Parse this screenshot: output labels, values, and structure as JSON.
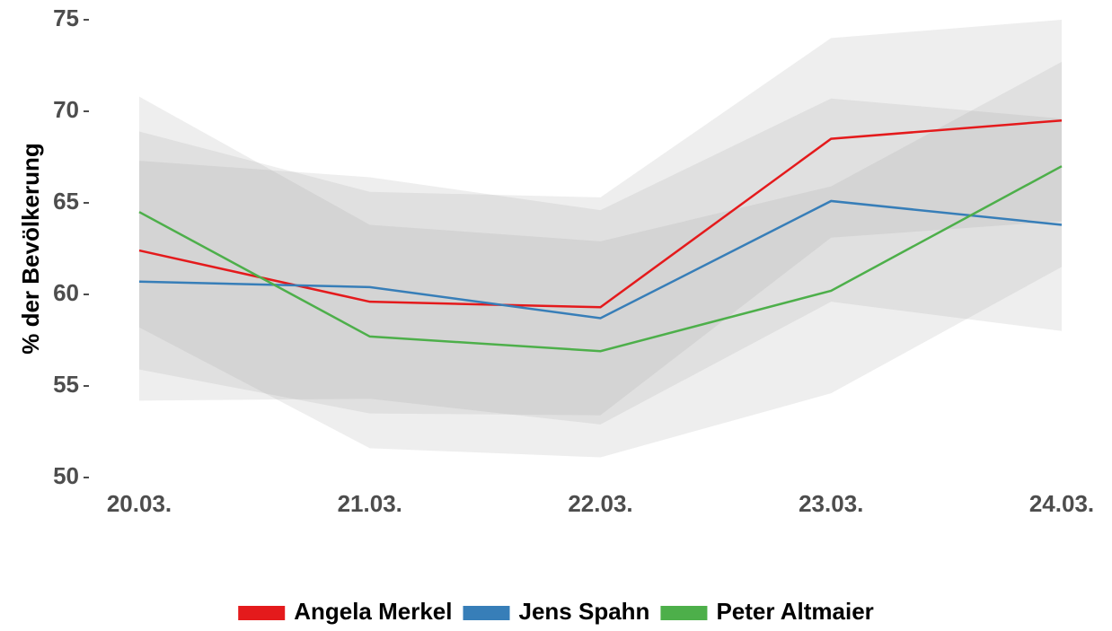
{
  "chart_data": {
    "type": "line",
    "y_label": "% der Bevölkerung",
    "categories": [
      "20.03.",
      "21.03.",
      "22.03.",
      "23.03.",
      "24.03."
    ],
    "ylim": [
      50,
      75
    ],
    "yticks": [
      50,
      55,
      60,
      65,
      70,
      75
    ],
    "legend": "bottom",
    "series": [
      {
        "name": "Angela Merkel",
        "color": "#e41a1c",
        "values": [
          62.4,
          59.6,
          59.3,
          68.5,
          69.5
        ],
        "lower": [
          55.9,
          53.5,
          53.4,
          63.1,
          64.0
        ],
        "upper": [
          68.9,
          65.6,
          65.3,
          74.0,
          75.0
        ]
      },
      {
        "name": "Jens Spahn",
        "color": "#377eb8",
        "values": [
          60.7,
          60.4,
          58.7,
          65.1,
          63.8
        ],
        "lower": [
          54.2,
          54.3,
          52.9,
          59.6,
          58.0
        ],
        "upper": [
          67.3,
          66.4,
          64.6,
          70.7,
          69.6
        ]
      },
      {
        "name": "Peter Altmaier",
        "color": "#4daf4a",
        "values": [
          64.5,
          57.7,
          56.9,
          60.2,
          67.0
        ],
        "lower": [
          58.2,
          51.6,
          51.1,
          54.6,
          61.5
        ],
        "upper": [
          70.8,
          63.8,
          62.9,
          65.9,
          72.7
        ]
      }
    ]
  }
}
